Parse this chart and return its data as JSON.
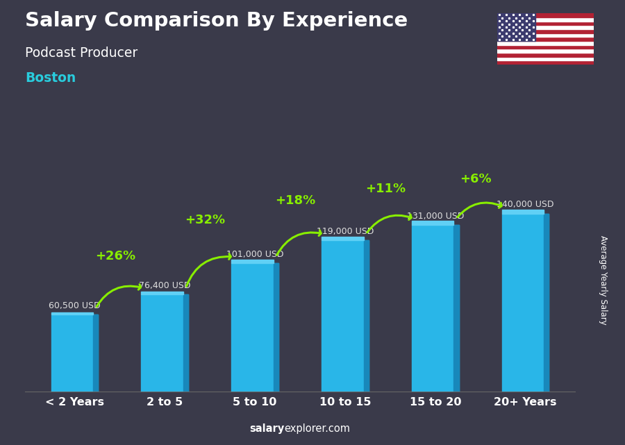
{
  "title": "Salary Comparison By Experience",
  "subtitle": "Podcast Producer",
  "city": "Boston",
  "categories": [
    "< 2 Years",
    "2 to 5",
    "5 to 10",
    "10 to 15",
    "15 to 20",
    "20+ Years"
  ],
  "values": [
    60500,
    76400,
    101000,
    119000,
    131000,
    140000
  ],
  "value_labels": [
    "60,500 USD",
    "76,400 USD",
    "101,000 USD",
    "119,000 USD",
    "131,000 USD",
    "140,000 USD"
  ],
  "pct_labels": [
    "+26%",
    "+32%",
    "+18%",
    "+11%",
    "+6%"
  ],
  "bar_color_face": "#29b6e8",
  "bar_color_top": "#60d0f5",
  "bar_color_dark": "#1888bb",
  "bg_color": "#3a3a4a",
  "title_color": "#ffffff",
  "subtitle_color": "#ffffff",
  "city_color": "#29ccdd",
  "value_label_color": "#e0e0e0",
  "pct_color": "#88ee00",
  "arrow_color": "#88ee00",
  "ylabel": "Average Yearly Salary",
  "watermark_bold": "salary",
  "watermark_normal": "explorer.com",
  "ylim": [
    0,
    175000
  ],
  "bar_width": 0.52
}
